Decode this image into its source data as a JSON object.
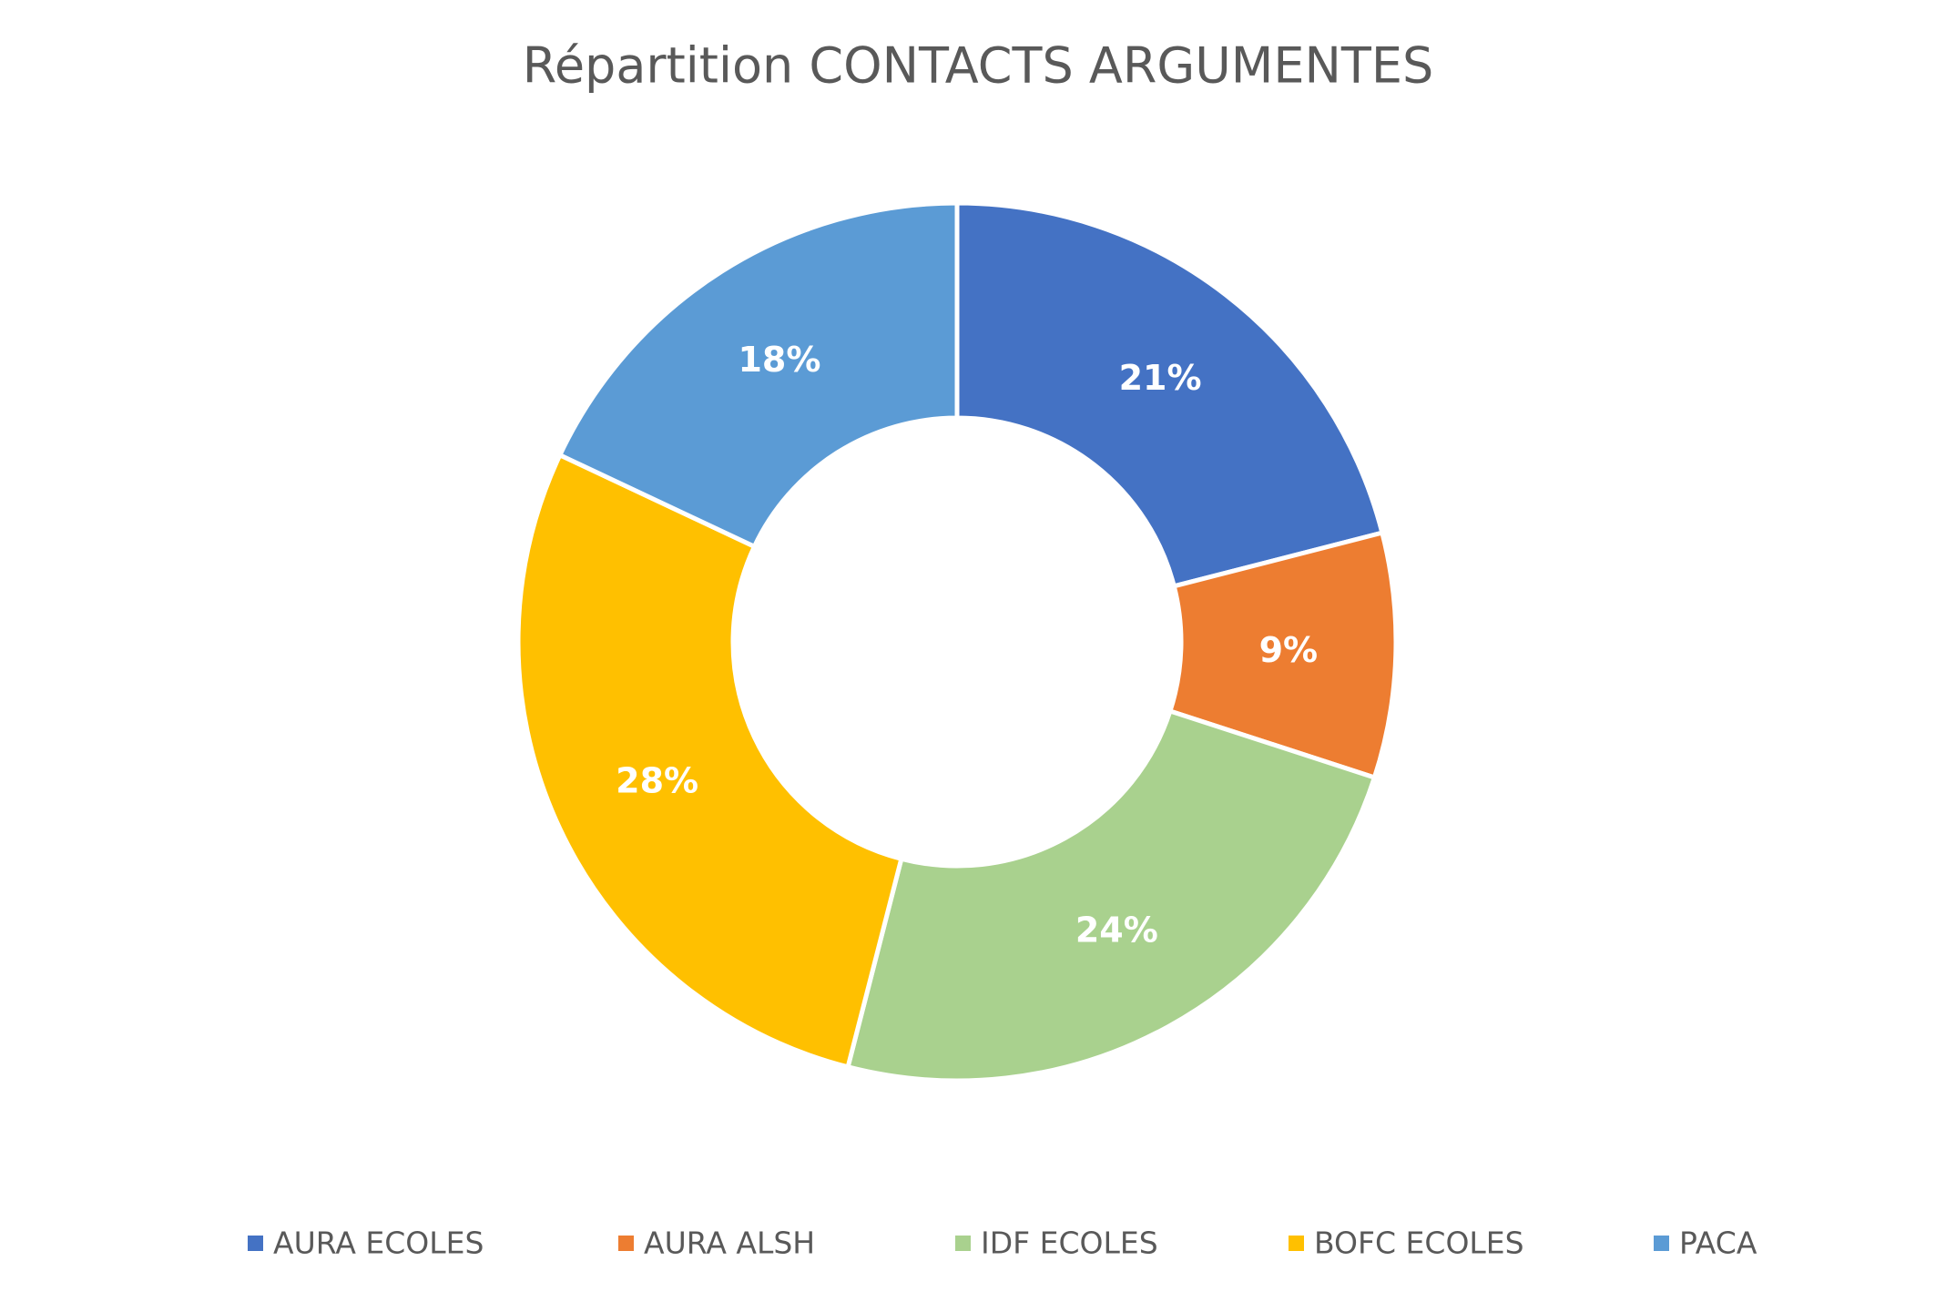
{
  "chart_data": {
    "type": "pie",
    "title": "Répartition CONTACTS ARGUMENTES",
    "categories": [
      "AURA ECOLES",
      "AURA ALSH",
      "IDF ECOLES",
      "BOFC ECOLES",
      "PACA"
    ],
    "values": [
      21,
      9,
      24,
      28,
      18
    ],
    "value_labels": [
      "21%",
      "9%",
      "24%",
      "28%",
      "18%"
    ],
    "colors": [
      "#4472c4",
      "#ed7d31",
      "#a9d18e",
      "#ffc000",
      "#5b9bd5"
    ]
  }
}
